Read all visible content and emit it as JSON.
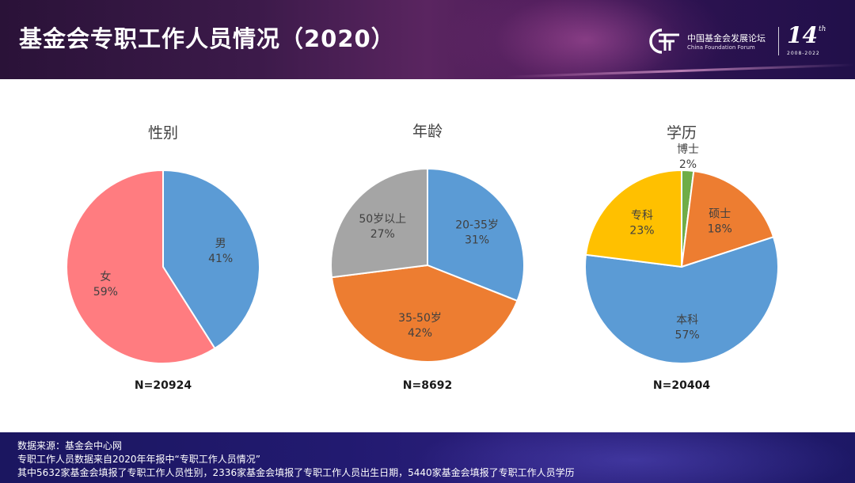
{
  "header": {
    "title": "基金会专职工作人员情况（2020）",
    "logo_cn": "中国基金会发展论坛",
    "logo_en": "China Foundation Forum",
    "logo_number": "14",
    "logo_suffix": "th",
    "logo_years": "2008-2022"
  },
  "chart_data": [
    {
      "type": "pie",
      "title": "性别",
      "note": "N=20924",
      "slices": [
        {
          "label": "男",
          "value": 41,
          "display": "41%",
          "color": "#5b9bd5"
        },
        {
          "label": "女",
          "value": 59,
          "display": "59%",
          "color": "#ff7c80"
        }
      ]
    },
    {
      "type": "pie",
      "title": "年龄",
      "note": "N=8692",
      "slices": [
        {
          "label": "20-35岁",
          "value": 31,
          "display": "31%",
          "color": "#5b9bd5"
        },
        {
          "label": "35-50岁",
          "value": 42,
          "display": "42%",
          "color": "#ed7d31"
        },
        {
          "label": "50岁以上",
          "value": 27,
          "display": "27%",
          "color": "#a5a5a5"
        }
      ]
    },
    {
      "type": "pie",
      "title": "学历",
      "note": "N=20404",
      "slices": [
        {
          "label": "博士",
          "value": 2,
          "display": "2%",
          "color": "#70ad47"
        },
        {
          "label": "硕士",
          "value": 18,
          "display": "18%",
          "color": "#ed7d31"
        },
        {
          "label": "本科",
          "value": 57,
          "display": "57%",
          "color": "#5b9bd5"
        },
        {
          "label": "专科",
          "value": 23,
          "display": "23%",
          "color": "#ffc000"
        }
      ]
    }
  ],
  "footer": {
    "line1": "数据来源：基金会中心网",
    "line2": "专职工作人员数据来自2020年年报中“专职工作人员情况”",
    "line3": "其中5632家基金会填报了专职工作人员性别，2336家基金会填报了专职工作人员出生日期，5440家基金会填报了专职工作人员学历"
  }
}
